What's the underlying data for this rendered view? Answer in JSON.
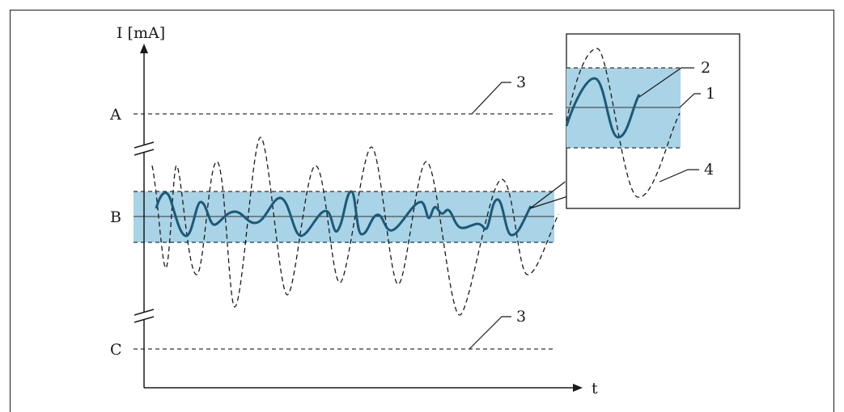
{
  "diagram": {
    "axis_y_label": "I [mA]",
    "axis_x_label": "t",
    "level_a_label": "A",
    "level_b_label": "B",
    "level_c_label": "C",
    "callouts": {
      "limit_upper": "3",
      "limit_lower": "3",
      "inset_band_center": "1",
      "inset_filtered_signal": "2",
      "inset_raw_signal": "4"
    },
    "colors": {
      "band_fill": "#a9d3e6",
      "filtered_signal": "#1b5a78",
      "raw_signal": "#1a1a1a",
      "axis": "#1a1a1a"
    }
  }
}
